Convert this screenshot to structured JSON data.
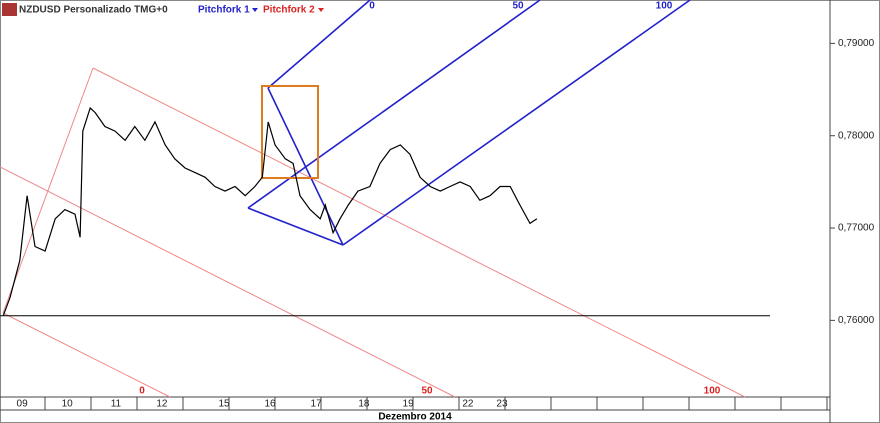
{
  "chart_data": {
    "type": "line",
    "title": "NZDUSD Personalizado TMG+0",
    "tools": [
      {
        "name": "Pitchfork 1",
        "color": "#2222cc",
        "levels": [
          "0",
          "50",
          "100"
        ]
      },
      {
        "name": "Pitchfork 2",
        "color": "#dd2222",
        "levels": [
          "0",
          "50",
          "100"
        ]
      }
    ],
    "x_label": "Dezembro 2014",
    "series": [
      {
        "name": "NZDUSD",
        "color": "#000000",
        "x": [
          0.07,
          0.22,
          0.43,
          0.59,
          0.76,
          0.98,
          1.2,
          1.41,
          1.63,
          1.74,
          1.8,
          1.96,
          2.07,
          2.28,
          2.5,
          2.72,
          2.93,
          3.15,
          3.37,
          3.59,
          3.8,
          4.02,
          4.24,
          4.46,
          4.67,
          4.89,
          5.11,
          5.33,
          5.54,
          5.7,
          5.83,
          5.98,
          6.2,
          6.37,
          6.52,
          6.74,
          6.96,
          7.07,
          7.24,
          7.39,
          7.57,
          7.78,
          8.04,
          8.26,
          8.48,
          8.7,
          8.91,
          9.13,
          9.35,
          9.57,
          9.78,
          10,
          10.22,
          10.43,
          10.65,
          10.87,
          11.09,
          11.3,
          11.52,
          11.67
        ],
        "values": [
          0.7605,
          0.7625,
          0.7665,
          0.7735,
          0.768,
          0.7675,
          0.771,
          0.772,
          0.7715,
          0.769,
          0.7805,
          0.783,
          0.7825,
          0.781,
          0.7805,
          0.7795,
          0.781,
          0.7795,
          0.7815,
          0.779,
          0.7775,
          0.7765,
          0.776,
          0.7755,
          0.7745,
          0.774,
          0.7745,
          0.7735,
          0.7745,
          0.7755,
          0.7815,
          0.779,
          0.7775,
          0.777,
          0.7735,
          0.772,
          0.771,
          0.7725,
          0.7695,
          0.771,
          0.7725,
          0.774,
          0.7745,
          0.777,
          0.7785,
          0.779,
          0.778,
          0.7755,
          0.7745,
          0.774,
          0.7745,
          0.775,
          0.7745,
          0.773,
          0.7735,
          0.7745,
          0.7745,
          0.7725,
          0.7705,
          0.771
        ]
      }
    ],
    "hline": 0.7605,
    "xlim": [
      0,
      18.04
    ],
    "xticks": [
      {
        "value": 0.48,
        "label": "09"
      },
      {
        "value": 1.46,
        "label": "10"
      },
      {
        "value": 2.52,
        "label": "11"
      },
      {
        "value": 3.52,
        "label": "12"
      },
      {
        "value": 4.87,
        "label": "15"
      },
      {
        "value": 5.87,
        "label": "16"
      },
      {
        "value": 6.87,
        "label": "17"
      },
      {
        "value": 7.91,
        "label": "18"
      },
      {
        "value": 8.87,
        "label": "19"
      },
      {
        "value": 10.17,
        "label": "22"
      },
      {
        "value": 10.91,
        "label": "23"
      }
    ],
    "ylim": [
      0.7517,
      0.7947
    ],
    "yticks": [
      {
        "value": 0.79,
        "label": "0,79000"
      },
      {
        "value": 0.78,
        "label": "0,78000"
      },
      {
        "value": 0.77,
        "label": "0,77000"
      },
      {
        "value": 0.76,
        "label": "0,76000"
      }
    ]
  }
}
